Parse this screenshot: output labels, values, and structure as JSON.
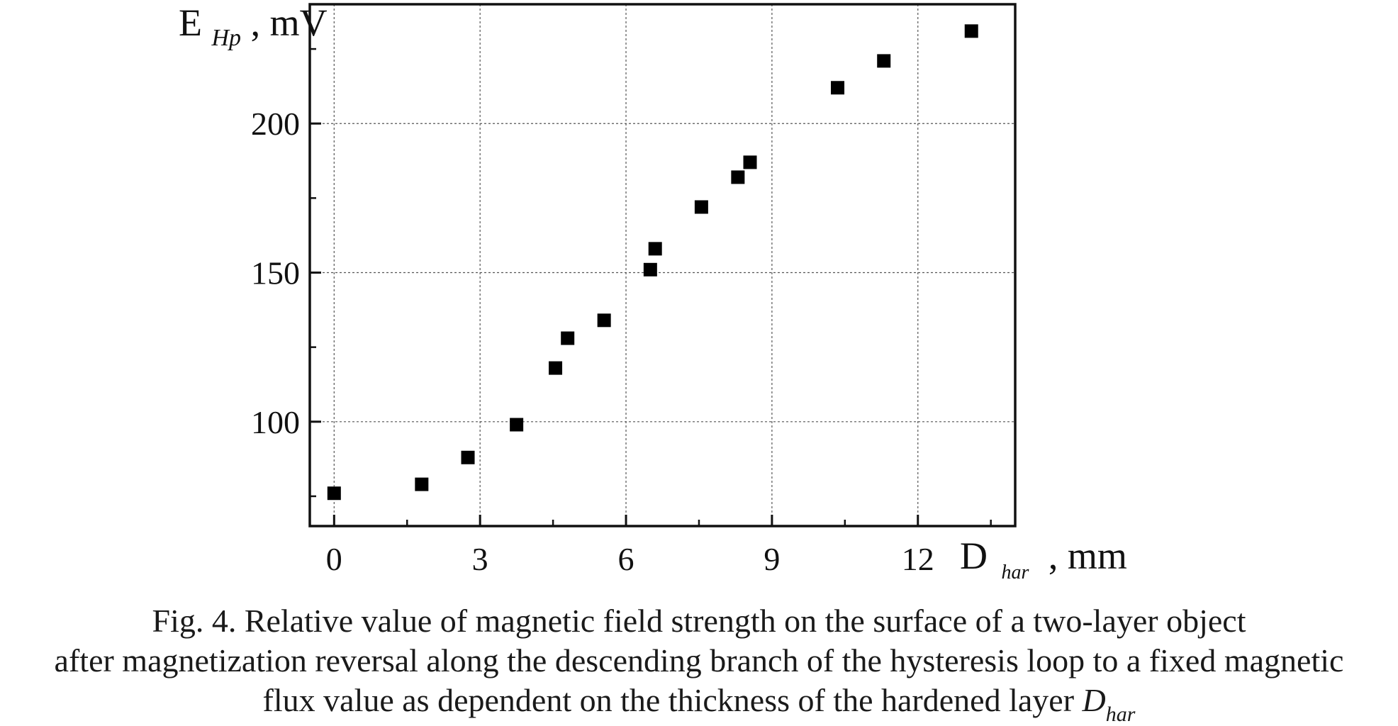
{
  "chart_data": {
    "type": "scatter",
    "x_axis": {
      "label_main": "D",
      "label_sub": "har",
      "label_unit": ", mm",
      "range": [
        -0.5,
        14
      ],
      "ticks": [
        0,
        3,
        6,
        9,
        12
      ],
      "tick_labels": [
        "0",
        "3",
        "6",
        "9",
        "12"
      ],
      "minor_step": 1.5
    },
    "y_axis": {
      "label_main": "E",
      "label_sub": "Hp",
      "label_unit": ", mV",
      "range": [
        65,
        240
      ],
      "ticks": [
        100,
        150,
        200
      ],
      "tick_labels": [
        "100",
        "150",
        "200"
      ],
      "minor_step": 25
    },
    "grid": true,
    "series": [
      {
        "marker": "square",
        "color": "#000000",
        "points": [
          {
            "x": 0.0,
            "y": 76
          },
          {
            "x": 1.8,
            "y": 79
          },
          {
            "x": 2.75,
            "y": 88
          },
          {
            "x": 3.75,
            "y": 99
          },
          {
            "x": 4.55,
            "y": 118
          },
          {
            "x": 4.8,
            "y": 128
          },
          {
            "x": 5.55,
            "y": 134
          },
          {
            "x": 6.5,
            "y": 151
          },
          {
            "x": 6.6,
            "y": 158
          },
          {
            "x": 7.55,
            "y": 172
          },
          {
            "x": 8.3,
            "y": 182
          },
          {
            "x": 8.55,
            "y": 187
          },
          {
            "x": 10.35,
            "y": 212
          },
          {
            "x": 11.3,
            "y": 221
          },
          {
            "x": 13.1,
            "y": 231
          }
        ]
      }
    ]
  },
  "caption": {
    "line1": "Fig. 4. Relative value of magnetic field strength on the surface of a two-layer object",
    "line2": "after magnetization reversal along the descending branch of the hysteresis loop to a fixed magnetic",
    "line3_text": "flux value as dependent on the thickness of the hardened layer ",
    "line3_symbol": "D",
    "line3_sub": "har"
  }
}
